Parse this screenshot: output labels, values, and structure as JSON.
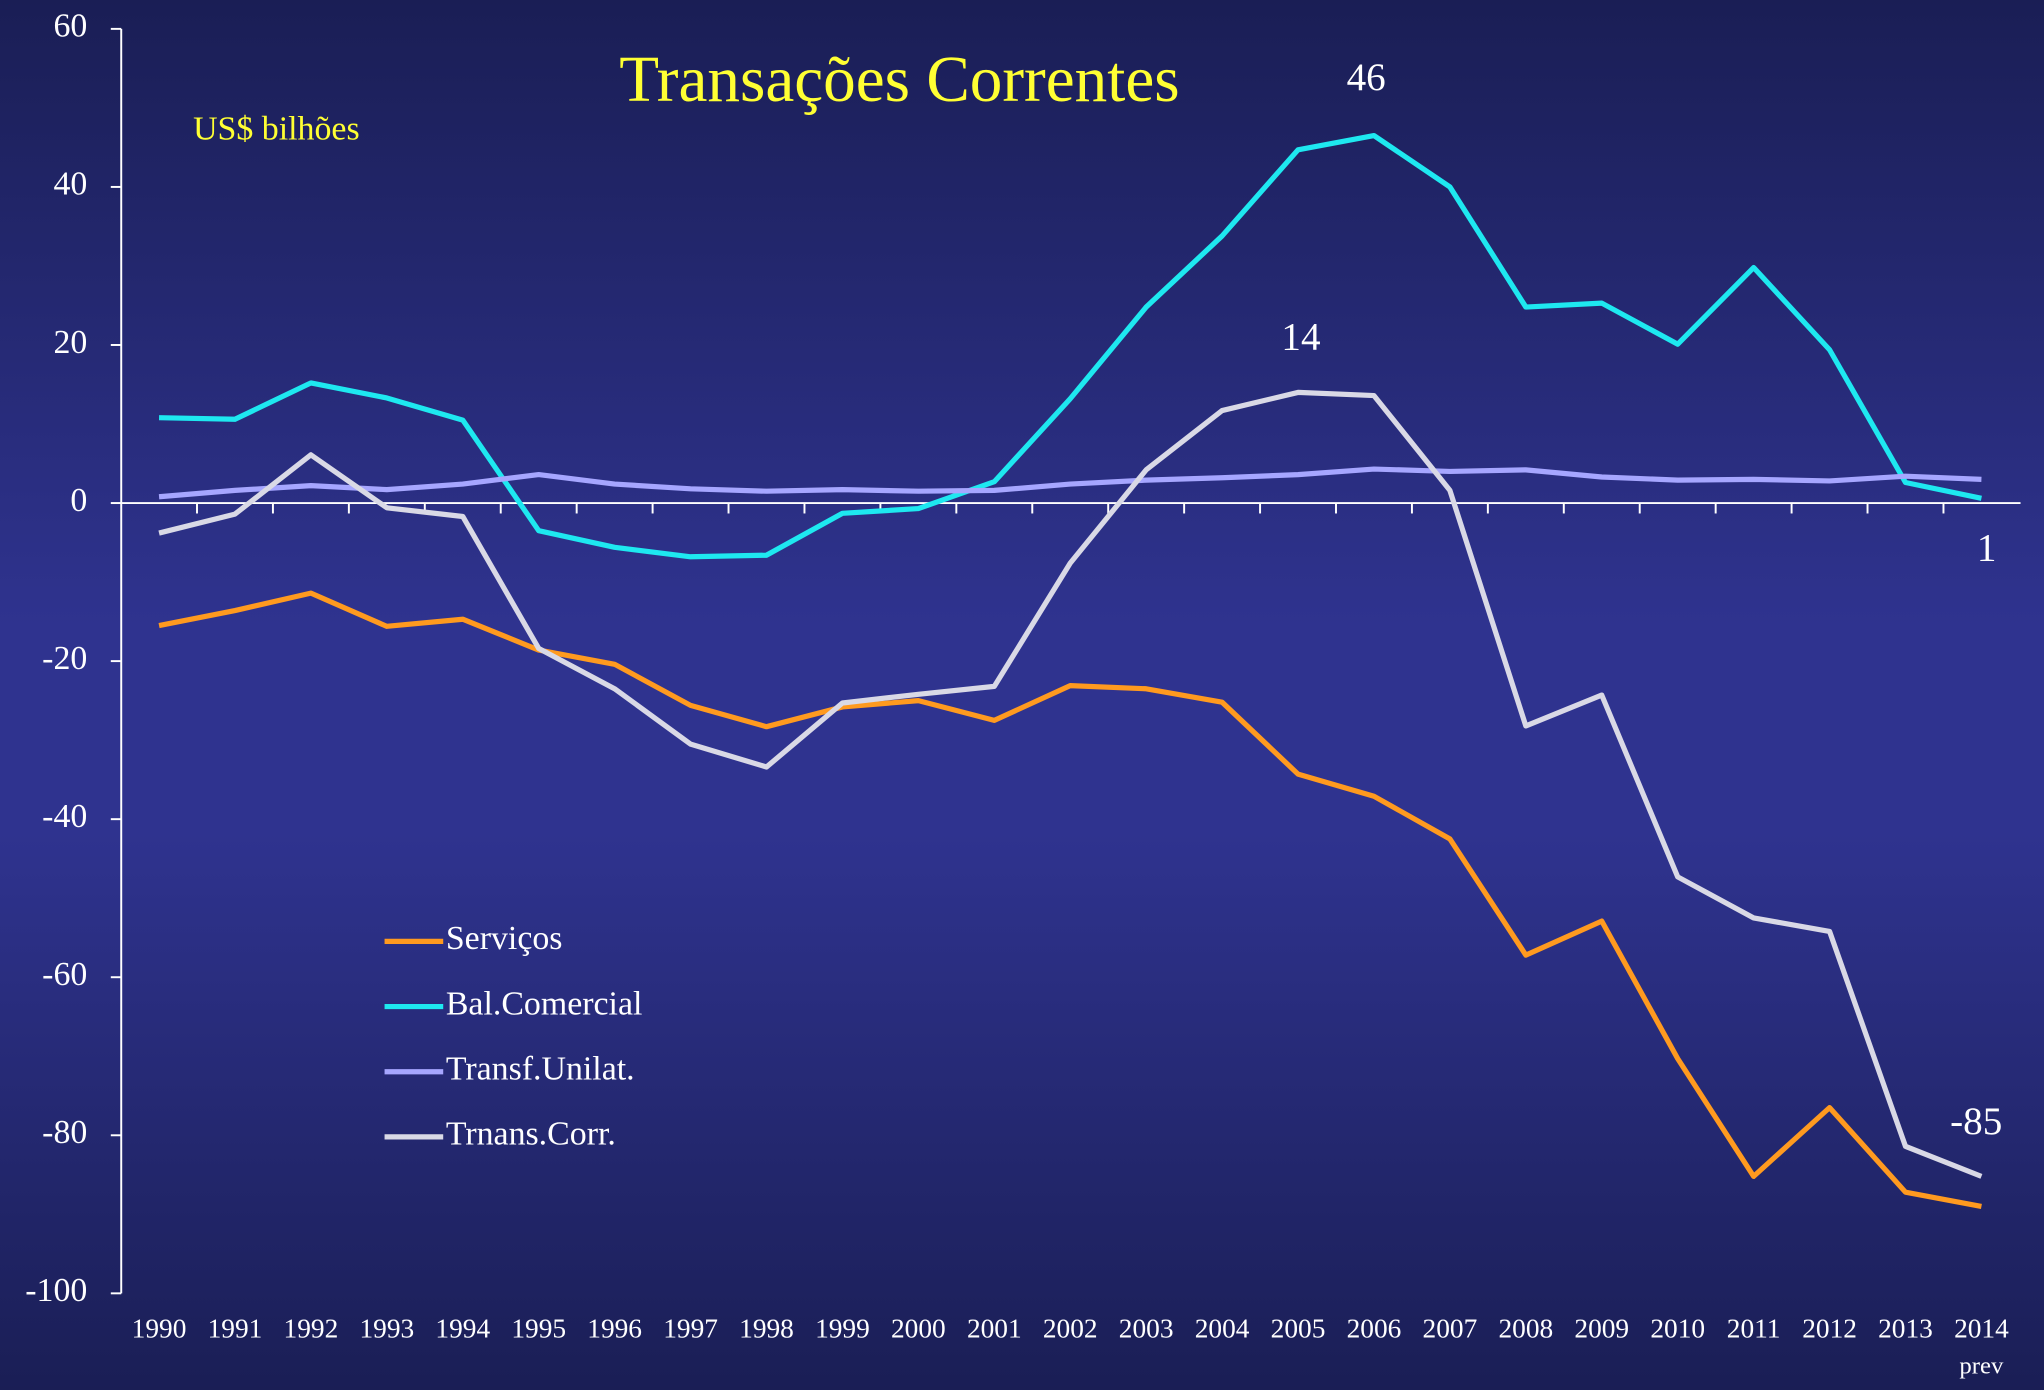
{
  "chart_data": {
    "type": "line",
    "title": "Transações Correntes",
    "subtitle": "US$ bilhões",
    "categories": [
      "1990",
      "1991",
      "1992",
      "1993",
      "1994",
      "1995",
      "1996",
      "1997",
      "1998",
      "1999",
      "2000",
      "2001",
      "2002",
      "2003",
      "2004",
      "2005",
      "2006",
      "2007",
      "2008",
      "2009",
      "2010",
      "2011",
      "2012",
      "2013",
      "2014"
    ],
    "category_note": "prev",
    "ylim": [
      -100,
      60
    ],
    "yticks": [
      60,
      40,
      20,
      0,
      -20,
      -40,
      -60,
      -80,
      -100
    ],
    "legend": "lower-left",
    "series": [
      {
        "name": "Serviços",
        "color": "#ff9a1f",
        "values": [
          -15.5,
          -13.6,
          -11.4,
          -15.6,
          -14.7,
          -18.6,
          -20.4,
          -25.6,
          -28.3,
          -25.8,
          -25.0,
          -27.5,
          -23.1,
          -23.5,
          -25.2,
          -34.3,
          -37.1,
          -42.5,
          -57.2,
          -52.9,
          -70.3,
          -85.2,
          -76.5,
          -87.2,
          -89.0
        ]
      },
      {
        "name": "Bal.Comercial",
        "color": "#1ee8f0",
        "values": [
          10.8,
          10.6,
          15.2,
          13.3,
          10.5,
          -3.5,
          -5.6,
          -6.8,
          -6.6,
          -1.3,
          -0.7,
          2.7,
          13.2,
          24.8,
          33.8,
          44.7,
          46.5,
          40.0,
          24.8,
          25.3,
          20.1,
          29.8,
          19.4,
          2.6,
          0.6
        ]
      },
      {
        "name": "Transf.Unilat.",
        "color": "#a6a6ff",
        "values": [
          0.8,
          1.6,
          2.2,
          1.7,
          2.4,
          3.6,
          2.4,
          1.8,
          1.5,
          1.7,
          1.5,
          1.6,
          2.4,
          2.9,
          3.2,
          3.6,
          4.3,
          4.0,
          4.2,
          3.3,
          2.9,
          3.0,
          2.8,
          3.4,
          3.0
        ]
      },
      {
        "name": "Trnans.Corr.",
        "color": "#d9d9e6",
        "values": [
          -3.8,
          -1.4,
          6.1,
          -0.6,
          -1.7,
          -18.4,
          -23.5,
          -30.5,
          -33.4,
          -25.3,
          -24.2,
          -23.2,
          -7.6,
          4.2,
          11.7,
          14.0,
          13.6,
          1.6,
          -28.2,
          -24.3,
          -47.3,
          -52.5,
          -54.2,
          -81.4,
          -85.2
        ]
      }
    ],
    "annotations": [
      "46",
      "14",
      "1",
      "-85"
    ]
  }
}
